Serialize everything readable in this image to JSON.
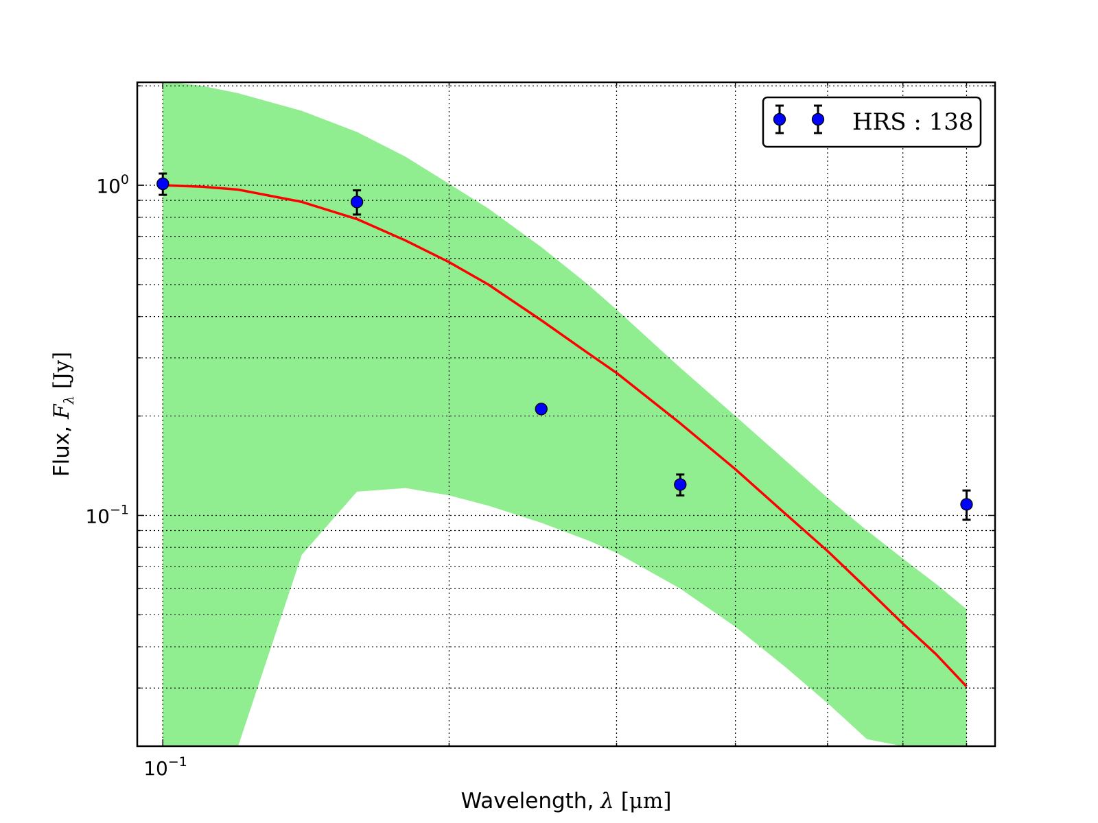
{
  "chart_data": {
    "type": "scatter",
    "title": "",
    "xlabel": {
      "text": "Wavelength, ",
      "symbol": "λ",
      "unit": "[μm]"
    },
    "ylabel": {
      "text": "Flux, ",
      "symbol": "F",
      "subscript": "λ",
      "unit": "[Jy]"
    },
    "x_scale": "log",
    "y_scale": "log",
    "xlim": [
      0.094,
      0.75
    ],
    "ylim": [
      0.02,
      2.05
    ],
    "x_tick_labels": [
      {
        "value": 0.1,
        "base": "10",
        "exp": "−1"
      }
    ],
    "y_tick_labels": [
      {
        "value": 1.0,
        "base": "10",
        "exp": "0"
      },
      {
        "value": 0.1,
        "base": "10",
        "exp": "−1"
      }
    ],
    "x_gridlines": [
      0.1,
      0.2,
      0.3,
      0.4,
      0.5,
      0.6,
      0.7
    ],
    "y_gridlines": [
      0.03,
      0.04,
      0.05,
      0.06,
      0.07,
      0.08,
      0.09,
      0.1,
      0.2,
      0.3,
      0.4,
      0.5,
      0.6,
      0.7,
      0.8,
      0.9,
      1.0,
      2.0
    ],
    "grid": true,
    "legend": {
      "position": "top-right",
      "label": "HRS : 138"
    },
    "series": [
      {
        "name": "HRS : 138",
        "kind": "errorbar",
        "color": "#0000ff",
        "x": [
          0.1,
          0.16,
          0.25,
          0.35,
          0.7
        ],
        "y": [
          1.01,
          0.89,
          0.21,
          0.124,
          0.108
        ],
        "yerr": [
          0.075,
          0.075,
          0.006,
          0.009,
          0.011
        ]
      },
      {
        "kind": "line",
        "color": "#ff0000",
        "x": [
          0.1,
          0.11,
          0.12,
          0.14,
          0.16,
          0.18,
          0.2,
          0.22,
          0.25,
          0.28,
          0.3,
          0.35,
          0.4,
          0.45,
          0.5,
          0.55,
          0.6,
          0.65,
          0.7
        ],
        "y": [
          1.0,
          0.99,
          0.97,
          0.89,
          0.79,
          0.68,
          0.585,
          0.5,
          0.39,
          0.31,
          0.27,
          0.19,
          0.138,
          0.102,
          0.078,
          0.06,
          0.047,
          0.038,
          0.0303
        ]
      },
      {
        "kind": "band",
        "color": "#90ee90",
        "x": [
          0.1,
          0.11,
          0.12,
          0.14,
          0.16,
          0.18,
          0.2,
          0.22,
          0.25,
          0.28,
          0.3,
          0.35,
          0.4,
          0.45,
          0.5,
          0.55,
          0.6,
          0.65,
          0.7
        ],
        "upper": [
          2.07,
          2.0,
          1.9,
          1.68,
          1.45,
          1.22,
          1.01,
          0.85,
          0.65,
          0.5,
          0.42,
          0.28,
          0.2,
          0.148,
          0.113,
          0.09,
          0.074,
          0.062,
          0.052
        ],
        "lower": [
          0.02,
          0.02,
          0.02,
          0.02,
          0.02,
          0.02,
          0.02,
          0.02,
          0.02,
          0.02,
          0.02,
          0.02,
          0.02,
          0.02,
          0.02,
          0.02,
          0.02,
          0.02,
          0.02
        ],
        "lower_visible": [
          null,
          null,
          0.02,
          0.076,
          0.118,
          0.121,
          0.115,
          0.107,
          0.095,
          0.084,
          0.077,
          0.06,
          0.046,
          0.035,
          0.027,
          0.021,
          0.02,
          0.02,
          0.02
        ]
      }
    ]
  }
}
